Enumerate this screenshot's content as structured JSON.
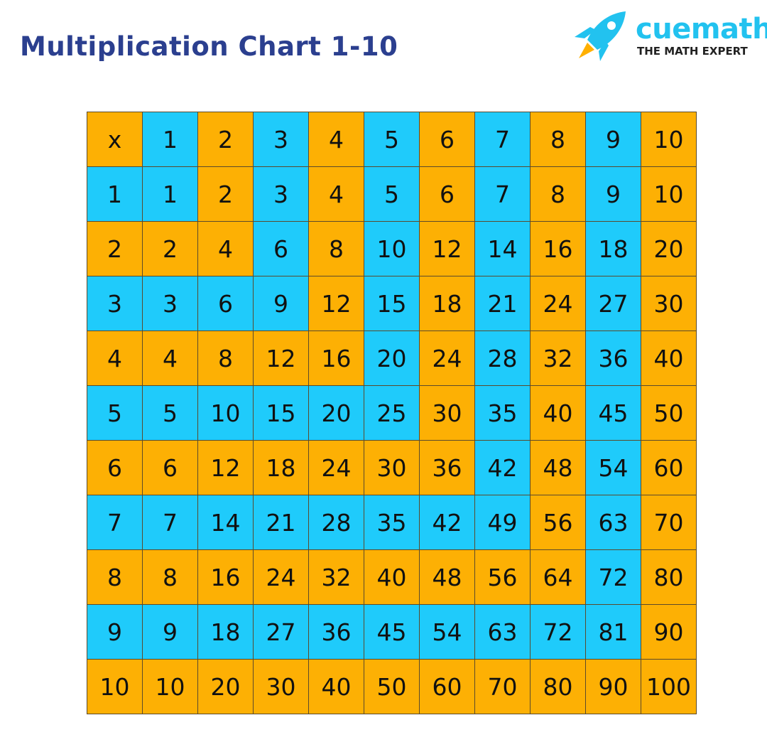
{
  "header": {
    "title": "Multiplication Chart 1-10",
    "logo": {
      "brand": "cuemath",
      "tagline": "THE MATH EXPERT"
    }
  },
  "table": {
    "rows": [
      [
        "x",
        1,
        2,
        3,
        4,
        5,
        6,
        7,
        8,
        9,
        10
      ],
      [
        1,
        1,
        2,
        3,
        4,
        5,
        6,
        7,
        8,
        9,
        10
      ],
      [
        2,
        2,
        4,
        6,
        8,
        10,
        12,
        14,
        16,
        18,
        20
      ],
      [
        3,
        3,
        6,
        9,
        12,
        15,
        18,
        21,
        24,
        27,
        30
      ],
      [
        4,
        4,
        8,
        12,
        16,
        20,
        24,
        28,
        32,
        36,
        40
      ],
      [
        5,
        5,
        10,
        15,
        20,
        25,
        30,
        35,
        40,
        45,
        50
      ],
      [
        6,
        6,
        12,
        18,
        24,
        30,
        36,
        42,
        48,
        54,
        60
      ],
      [
        7,
        7,
        14,
        21,
        28,
        35,
        42,
        49,
        56,
        63,
        70
      ],
      [
        8,
        8,
        16,
        24,
        32,
        40,
        48,
        56,
        64,
        72,
        80
      ],
      [
        9,
        9,
        18,
        27,
        36,
        45,
        54,
        63,
        72,
        81,
        90
      ],
      [
        10,
        10,
        20,
        30,
        40,
        50,
        60,
        70,
        80,
        90,
        100
      ]
    ]
  }
}
